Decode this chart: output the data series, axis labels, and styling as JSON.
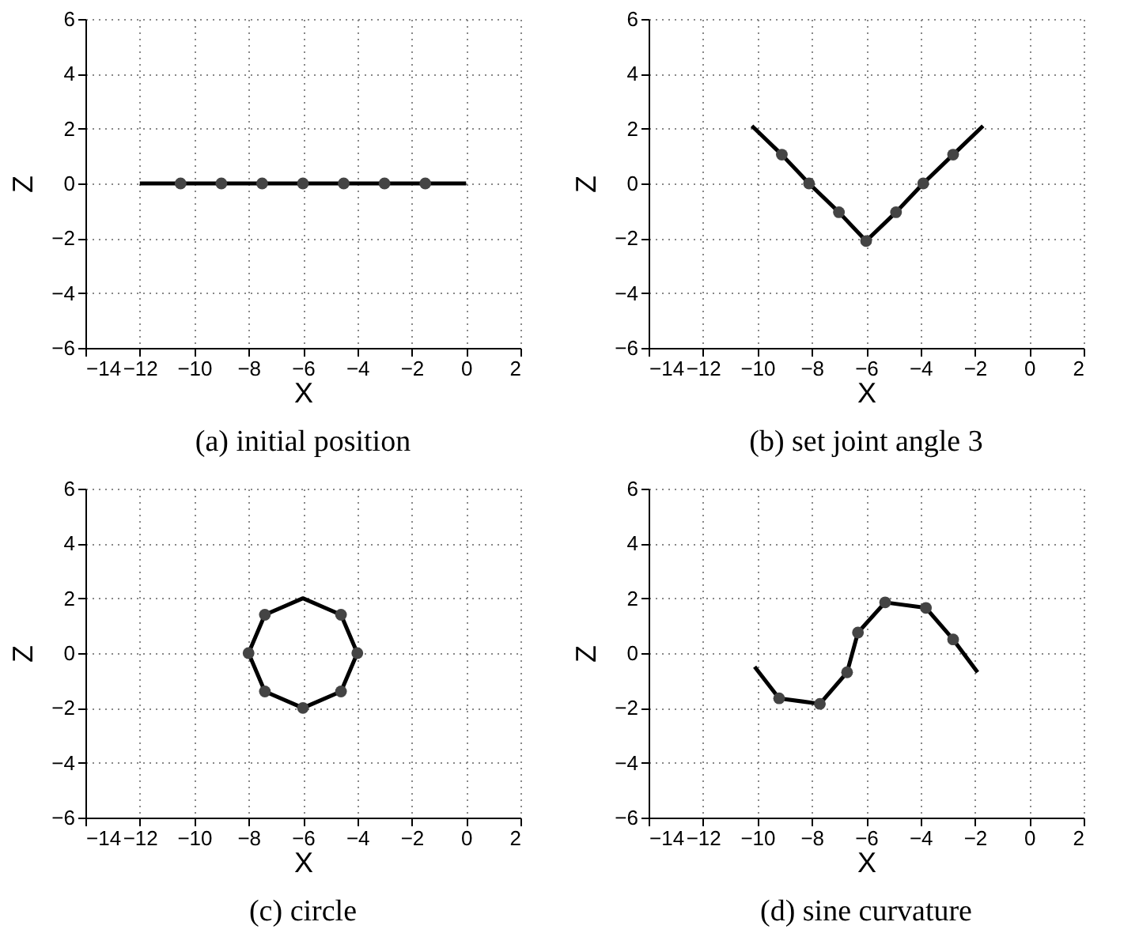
{
  "chart_data": [
    {
      "type": "line",
      "title": "(a) initial position",
      "xlabel": "X",
      "ylabel": "Z",
      "xlim": [
        -14,
        2
      ],
      "ylim": [
        -6,
        6
      ],
      "xticks": [
        -14,
        -12,
        -10,
        -8,
        -6,
        -4,
        -2,
        0,
        2
      ],
      "yticks": [
        -6,
        -4,
        -2,
        0,
        2,
        4,
        6
      ],
      "grid": true,
      "series": [
        {
          "type": "line",
          "color": "#000000",
          "marker": "none",
          "x": [
            -12,
            -10.5,
            -9,
            -7.5,
            -6,
            -4.5,
            -3,
            -1.5,
            0
          ],
          "values": [
            0,
            0,
            0,
            0,
            0,
            0,
            0,
            0,
            0
          ]
        },
        {
          "type": "scatter",
          "color": "#444444",
          "marker": "circle",
          "x": [
            -10.5,
            -9,
            -7.5,
            -6,
            -4.5,
            -3,
            -1.5
          ],
          "values": [
            0,
            0,
            0,
            0,
            0,
            0,
            0
          ]
        }
      ]
    },
    {
      "type": "line",
      "title": "(b) set joint angle 3",
      "xlabel": "X",
      "ylabel": "Z",
      "xlim": [
        -14,
        2
      ],
      "ylim": [
        -6,
        6
      ],
      "xticks": [
        -14,
        -12,
        -10,
        -8,
        -6,
        -4,
        -2,
        0,
        2
      ],
      "yticks": [
        -6,
        -4,
        -2,
        0,
        2,
        4,
        6
      ],
      "grid": true,
      "series": [
        {
          "type": "line",
          "color": "#000000",
          "marker": "none",
          "x": [
            -10.2,
            -9.1,
            -8.1,
            -7,
            -6,
            -4.9,
            -3.9,
            -2.8,
            -1.7
          ],
          "values": [
            2.1,
            1.05,
            0,
            -1.05,
            -2.1,
            -1.05,
            0,
            1.05,
            2.1
          ]
        },
        {
          "type": "scatter",
          "color": "#444444",
          "marker": "circle",
          "x": [
            -9.1,
            -8.1,
            -7,
            -6,
            -4.9,
            -3.9,
            -2.8
          ],
          "values": [
            1.05,
            0,
            -1.05,
            -2.1,
            -1.05,
            0,
            1.05
          ]
        }
      ]
    },
    {
      "type": "line",
      "title": "(c) circle",
      "xlabel": "X",
      "ylabel": "Z",
      "xlim": [
        -14,
        2
      ],
      "ylim": [
        -6,
        6
      ],
      "xticks": [
        -14,
        -12,
        -10,
        -8,
        -6,
        -4,
        -2,
        0,
        2
      ],
      "yticks": [
        -6,
        -4,
        -2,
        0,
        2,
        4,
        6
      ],
      "grid": true,
      "series": [
        {
          "type": "line",
          "color": "#000000",
          "marker": "none",
          "x": [
            -8,
            -7.4,
            -6,
            -4.6,
            -4
          ],
          "values": [
            0,
            1.4,
            2,
            1.4,
            0
          ]
        },
        {
          "type": "line",
          "color": "#000000",
          "marker": "none",
          "x": [
            -8,
            -7.4,
            -6,
            -4.6,
            -4
          ],
          "values": [
            0,
            -1.4,
            -2,
            -1.4,
            0
          ]
        },
        {
          "type": "scatter",
          "color": "#444444",
          "marker": "circle",
          "x": [
            -4.6,
            -4,
            -4.6,
            -6,
            -7.4,
            -8,
            -7.4
          ],
          "values": [
            1.4,
            0,
            -1.4,
            -2,
            -1.4,
            0,
            1.4
          ]
        }
      ]
    },
    {
      "type": "line",
      "title": "(d) sine curvature",
      "xlabel": "X",
      "ylabel": "Z",
      "xlim": [
        -14,
        2
      ],
      "ylim": [
        -6,
        6
      ],
      "xticks": [
        -14,
        -12,
        -10,
        -8,
        -6,
        -4,
        -2,
        0,
        2
      ],
      "yticks": [
        -6,
        -4,
        -2,
        0,
        2,
        4,
        6
      ],
      "grid": true,
      "series": [
        {
          "type": "line",
          "color": "#000000",
          "marker": "none",
          "x": [
            -10.1,
            -9.2,
            -7.7,
            -6.7,
            -6.3,
            -5.3,
            -3.8,
            -2.8,
            -1.9
          ],
          "values": [
            -0.5,
            -1.65,
            -1.85,
            -0.7,
            0.75,
            1.85,
            1.65,
            0.5,
            -0.7
          ]
        },
        {
          "type": "scatter",
          "color": "#444444",
          "marker": "circle",
          "x": [
            -9.2,
            -7.7,
            -6.7,
            -6.3,
            -5.3,
            -3.8,
            -2.8
          ],
          "values": [
            -1.65,
            -1.85,
            -0.7,
            0.75,
            1.85,
            1.65,
            0.5
          ]
        }
      ]
    }
  ]
}
